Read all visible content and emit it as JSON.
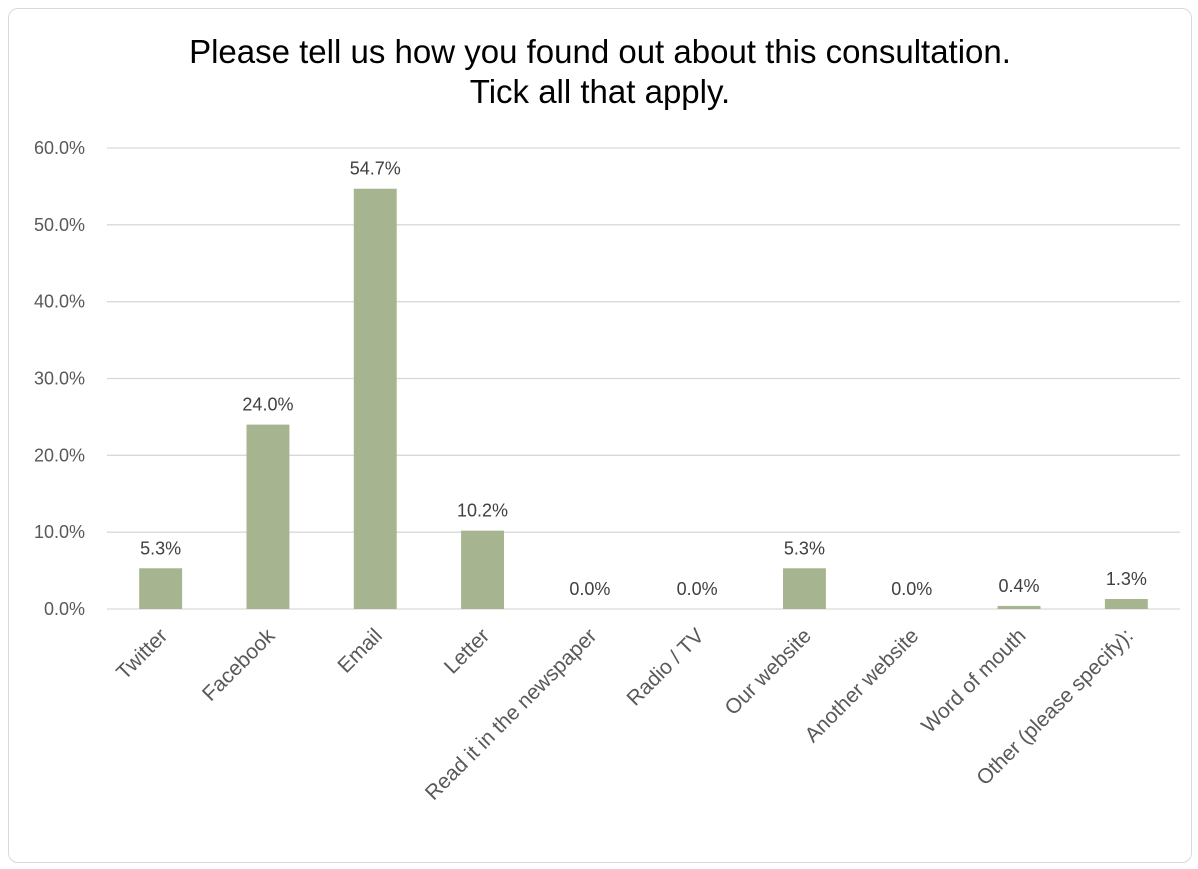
{
  "chart_data": {
    "type": "bar",
    "title": [
      "Please tell us how you found out about this consultation.",
      "Tick all that apply."
    ],
    "categories": [
      "Twitter",
      "Facebook",
      "Email",
      "Letter",
      "Read it in the newspaper",
      "Radio / TV",
      "Our website",
      "Another website",
      "Word of mouth",
      "Other (please specify):"
    ],
    "values": [
      5.3,
      24.0,
      54.7,
      10.2,
      0.0,
      0.0,
      5.3,
      0.0,
      0.4,
      1.3
    ],
    "data_labels": [
      "5.3%",
      "24.0%",
      "54.7%",
      "10.2%",
      "0.0%",
      "0.0%",
      "5.3%",
      "0.0%",
      "0.4%",
      "1.3%"
    ],
    "yticks": [
      "0.0%",
      "10.0%",
      "20.0%",
      "30.0%",
      "40.0%",
      "50.0%",
      "60.0%"
    ],
    "ylim": [
      0,
      60
    ],
    "grid": true,
    "legend": "none",
    "bar_color": "#a6b590",
    "grid_color": "#d9d9d9",
    "xlabel": "",
    "ylabel": ""
  }
}
